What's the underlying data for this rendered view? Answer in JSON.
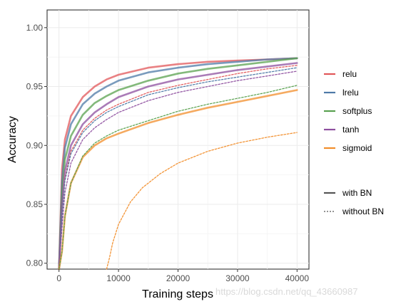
{
  "chart_data": {
    "type": "line",
    "xlabel": "Training steps",
    "ylabel": "Accuracy",
    "xlim": [
      -2000,
      42000
    ],
    "ylim": [
      0.795,
      1.015
    ],
    "x_ticks": [
      0,
      10000,
      20000,
      30000,
      40000
    ],
    "x_tick_labels": [
      "0",
      "10000",
      "20000",
      "30000",
      "40000"
    ],
    "y_ticks": [
      0.8,
      0.85,
      0.9,
      0.95,
      1.0
    ],
    "y_tick_labels": [
      "0.80",
      "0.85",
      "0.90",
      "0.95",
      "1.00"
    ],
    "grid": true,
    "legend_position": "right",
    "legend_activation": [
      {
        "label": "relu",
        "color": "#e15759"
      },
      {
        "label": "lrelu",
        "color": "#4e79a7"
      },
      {
        "label": "softplus",
        "color": "#59a14f"
      },
      {
        "label": "tanh",
        "color": "#8e4f9f"
      },
      {
        "label": "sigmoid",
        "color": "#f28e2b"
      }
    ],
    "legend_style": [
      {
        "label": "with BN",
        "dash": "solid"
      },
      {
        "label": "without BN",
        "dash": "dotted"
      }
    ],
    "series": [
      {
        "name": "relu",
        "bn": "with BN",
        "color": "#e15759",
        "dash": "solid",
        "x": [
          0,
          500,
          1000,
          2000,
          4000,
          6000,
          8000,
          10000,
          15000,
          20000,
          25000,
          30000,
          35000,
          40000
        ],
        "y": [
          0.78,
          0.88,
          0.905,
          0.925,
          0.941,
          0.95,
          0.956,
          0.96,
          0.966,
          0.969,
          0.971,
          0.972,
          0.973,
          0.974
        ]
      },
      {
        "name": "lrelu",
        "bn": "with BN",
        "color": "#4e79a7",
        "dash": "solid",
        "x": [
          0,
          500,
          1000,
          2000,
          4000,
          6000,
          8000,
          10000,
          15000,
          20000,
          25000,
          30000,
          35000,
          40000
        ],
        "y": [
          0.78,
          0.87,
          0.898,
          0.918,
          0.935,
          0.944,
          0.95,
          0.955,
          0.962,
          0.966,
          0.969,
          0.971,
          0.973,
          0.974
        ]
      },
      {
        "name": "softplus",
        "bn": "with BN",
        "color": "#59a14f",
        "dash": "solid",
        "x": [
          0,
          500,
          1000,
          2000,
          4000,
          6000,
          8000,
          10000,
          15000,
          20000,
          25000,
          30000,
          35000,
          40000
        ],
        "y": [
          0.78,
          0.86,
          0.888,
          0.908,
          0.926,
          0.936,
          0.942,
          0.947,
          0.955,
          0.961,
          0.965,
          0.968,
          0.971,
          0.974
        ]
      },
      {
        "name": "tanh",
        "bn": "with BN",
        "color": "#8e4f9f",
        "dash": "solid",
        "x": [
          0,
          500,
          1000,
          2000,
          4000,
          6000,
          8000,
          10000,
          15000,
          20000,
          25000,
          30000,
          35000,
          40000
        ],
        "y": [
          0.78,
          0.85,
          0.878,
          0.9,
          0.918,
          0.928,
          0.935,
          0.941,
          0.95,
          0.956,
          0.96,
          0.964,
          0.967,
          0.97
        ]
      },
      {
        "name": "relu",
        "bn": "without BN",
        "color": "#e15759",
        "dash": "dotted",
        "x": [
          0,
          500,
          1000,
          2000,
          4000,
          6000,
          8000,
          10000,
          15000,
          20000,
          25000,
          30000,
          35000,
          40000
        ],
        "y": [
          0.78,
          0.84,
          0.872,
          0.895,
          0.913,
          0.923,
          0.93,
          0.935,
          0.945,
          0.951,
          0.956,
          0.961,
          0.965,
          0.968
        ]
      },
      {
        "name": "lrelu",
        "bn": "without BN",
        "color": "#4e79a7",
        "dash": "dotted",
        "x": [
          0,
          500,
          1000,
          2000,
          4000,
          6000,
          8000,
          10000,
          15000,
          20000,
          25000,
          30000,
          35000,
          40000
        ],
        "y": [
          0.78,
          0.84,
          0.87,
          0.893,
          0.911,
          0.921,
          0.928,
          0.933,
          0.943,
          0.949,
          0.954,
          0.958,
          0.962,
          0.966
        ]
      },
      {
        "name": "tanh",
        "bn": "without BN",
        "color": "#8e4f9f",
        "dash": "dotted",
        "x": [
          0,
          500,
          1000,
          2000,
          4000,
          6000,
          8000,
          10000,
          15000,
          20000,
          25000,
          30000,
          35000,
          40000
        ],
        "y": [
          0.78,
          0.83,
          0.86,
          0.885,
          0.905,
          0.915,
          0.922,
          0.928,
          0.938,
          0.945,
          0.95,
          0.955,
          0.959,
          0.963
        ]
      },
      {
        "name": "sigmoid",
        "bn": "with BN",
        "color": "#f28e2b",
        "dash": "solid",
        "x": [
          0,
          500,
          1000,
          2000,
          4000,
          6000,
          8000,
          10000,
          15000,
          20000,
          25000,
          30000,
          35000,
          40000
        ],
        "y": [
          0.78,
          0.81,
          0.84,
          0.868,
          0.89,
          0.9,
          0.906,
          0.91,
          0.919,
          0.926,
          0.932,
          0.937,
          0.942,
          0.947
        ]
      },
      {
        "name": "softplus",
        "bn": "without BN",
        "color": "#59a14f",
        "dash": "dotted",
        "x": [
          0,
          500,
          1000,
          2000,
          4000,
          6000,
          8000,
          10000,
          15000,
          20000,
          25000,
          30000,
          35000,
          40000
        ],
        "y": [
          0.78,
          0.81,
          0.84,
          0.868,
          0.891,
          0.902,
          0.908,
          0.913,
          0.921,
          0.929,
          0.935,
          0.94,
          0.945,
          0.951
        ]
      },
      {
        "name": "sigmoid",
        "bn": "without BN",
        "color": "#f28e2b",
        "dash": "dotted",
        "x": [
          8000,
          8500,
          9000,
          10000,
          12000,
          14000,
          17000,
          20000,
          25000,
          30000,
          35000,
          40000
        ],
        "y": [
          0.79,
          0.805,
          0.817,
          0.833,
          0.852,
          0.864,
          0.876,
          0.885,
          0.895,
          0.902,
          0.907,
          0.911
        ]
      }
    ]
  },
  "watermark": "https://blog.csdn.net/qq_43660987"
}
